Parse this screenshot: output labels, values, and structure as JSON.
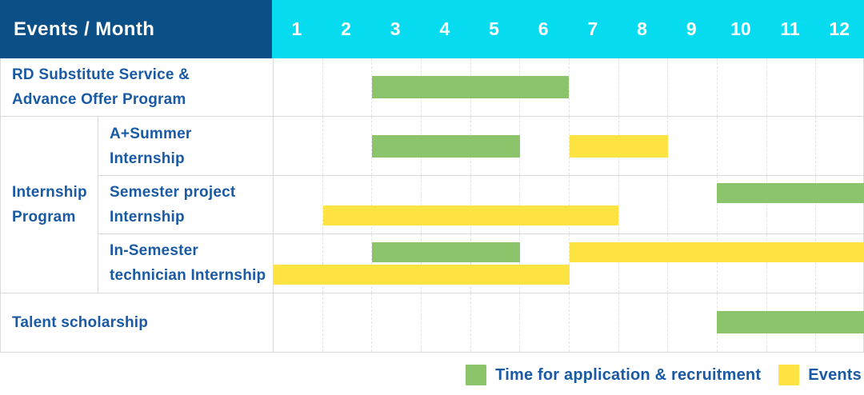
{
  "colors": {
    "header_bg": "#0A4F86",
    "months_bg": "#07DBF0",
    "label_text": "#1A5AA5",
    "green": "#8BC46A",
    "yellow": "#FFE342",
    "grid_border": "#d9d9d9",
    "month_gridline": "#e4e4e4"
  },
  "header": {
    "label": "Events / Month",
    "months": [
      "1",
      "2",
      "3",
      "4",
      "5",
      "6",
      "7",
      "8",
      "9",
      "10",
      "11",
      "12"
    ]
  },
  "group": {
    "lines": [
      "Internship",
      "Program"
    ]
  },
  "rows": [
    {
      "name": "rd-substitute-service-advance-offer-program",
      "lines": [
        "RD Substitute Service &",
        "Advance Offer Program"
      ],
      "grouped": false,
      "tracks": [
        [
          {
            "type": "application",
            "start": 3,
            "end": 6
          }
        ]
      ]
    },
    {
      "name": "a-plus-summer-internship",
      "lines": [
        "A+Summer",
        "Internship"
      ],
      "grouped": true,
      "tracks": [
        [
          {
            "type": "application",
            "start": 3,
            "end": 5
          },
          {
            "type": "event",
            "start": 7,
            "end": 8
          }
        ]
      ]
    },
    {
      "name": "semester-project-internship",
      "lines": [
        "Semester project",
        "Internship"
      ],
      "grouped": true,
      "tracks": [
        [
          {
            "type": "application",
            "start": 10,
            "end": 12
          }
        ],
        [
          {
            "type": "event",
            "start": 2,
            "end": 7
          }
        ]
      ]
    },
    {
      "name": "in-semester-technician-internship",
      "lines": [
        "In-Semester",
        "technician Internship"
      ],
      "grouped": true,
      "tracks": [
        [
          {
            "type": "application",
            "start": 3,
            "end": 5
          },
          {
            "type": "event",
            "start": 7,
            "end": 12
          }
        ],
        [
          {
            "type": "event",
            "start": 1,
            "end": 6
          }
        ]
      ]
    },
    {
      "name": "talent-scholarship",
      "lines": [
        "Talent scholarship"
      ],
      "grouped": false,
      "tracks": [
        [
          {
            "type": "application",
            "start": 10,
            "end": 12
          }
        ]
      ]
    }
  ],
  "legend": [
    {
      "type": "application",
      "label": "Time for application & recruitment"
    },
    {
      "type": "event",
      "label": "Events"
    }
  ],
  "chart_data": {
    "type": "table",
    "title": "Events / Month",
    "x_label": "Month",
    "x_ticks": [
      1,
      2,
      3,
      4,
      5,
      6,
      7,
      8,
      9,
      10,
      11,
      12
    ],
    "x_range": [
      1,
      12
    ],
    "grid": true,
    "legend_position": "bottom-right",
    "legend": [
      "Time for application & recruitment",
      "Events"
    ],
    "legend_colors": {
      "Time for application & recruitment": "#8BC46A",
      "Events": "#FFE342"
    },
    "rows": [
      {
        "event": "RD Substitute Service & Advance Offer Program",
        "group": null,
        "time_for_application_and_recruitment_month_ranges": [
          [
            3,
            6
          ]
        ],
        "events_month_ranges": []
      },
      {
        "event": "A+Summer Internship",
        "group": "Internship Program",
        "time_for_application_and_recruitment_month_ranges": [
          [
            3,
            5
          ]
        ],
        "events_month_ranges": [
          [
            7,
            8
          ]
        ]
      },
      {
        "event": "Semester project Internship",
        "group": "Internship Program",
        "time_for_application_and_recruitment_month_ranges": [
          [
            10,
            12
          ]
        ],
        "events_month_ranges": [
          [
            2,
            7
          ]
        ]
      },
      {
        "event": "In-Semester technician Internship",
        "group": "Internship Program",
        "time_for_application_and_recruitment_month_ranges": [
          [
            3,
            5
          ]
        ],
        "events_month_ranges": [
          [
            7,
            12
          ],
          [
            1,
            6
          ]
        ]
      },
      {
        "event": "Talent scholarship",
        "group": null,
        "time_for_application_and_recruitment_month_ranges": [
          [
            10,
            12
          ]
        ],
        "events_month_ranges": []
      }
    ]
  }
}
